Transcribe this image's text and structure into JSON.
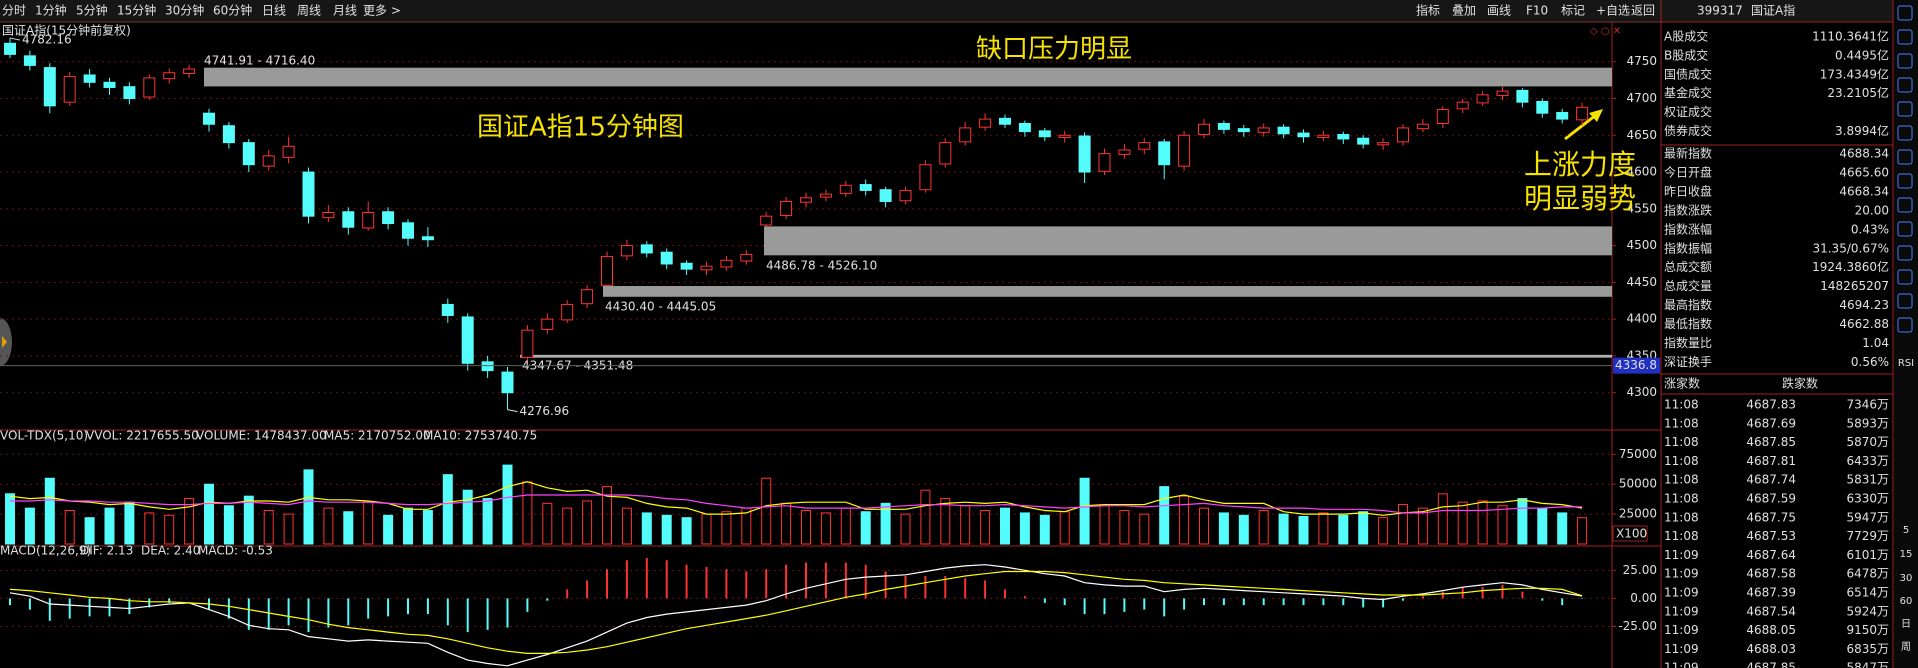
{
  "toolbar": {
    "tabs": [
      "分时",
      "1分钟",
      "5分钟",
      "15分钟",
      "30分钟",
      "60分钟",
      "日线",
      "周线",
      "月线",
      "更多 >"
    ],
    "tools": [
      "指标",
      "叠加",
      "画线",
      "F10",
      "标记",
      "+自选",
      "返回"
    ]
  },
  "chart_data": [
    {
      "type": "candlestick",
      "title": "国证A指(15分钟前复权)",
      "open": [
        4775,
        4758,
        4742,
        4695,
        4732,
        4722,
        4716,
        4702,
        4727,
        4734,
        4680,
        4663,
        4640,
        4608,
        4620,
        4600,
        4538,
        4546,
        4524,
        4546,
        4531,
        4512,
        4420,
        4403,
        4342,
        4328,
        4348,
        4386,
        4399,
        4421,
        4446,
        4486,
        4501,
        4491,
        4476,
        4467,
        4471,
        4479,
        4528,
        4541,
        4559,
        4566,
        4571,
        4583,
        4576,
        4561,
        4576,
        4611,
        4641,
        4661,
        4673,
        4666,
        4656,
        4647,
        4649,
        4601,
        4624,
        4631,
        4641,
        4608,
        4651,
        4666,
        4659,
        4654,
        4661,
        4653,
        4647,
        4651,
        4646,
        4637,
        4641,
        4659,
        4666,
        4686,
        4694,
        4704,
        4711,
        4696,
        4681,
        4671
      ],
      "high": [
        4782.16,
        4765,
        4748,
        4736,
        4740,
        4728,
        4722,
        4733,
        4741,
        4746,
        4686,
        4668,
        4645,
        4630,
        4648,
        4606,
        4555,
        4552,
        4560,
        4552,
        4536,
        4525,
        4428,
        4408,
        4350,
        4335,
        4392,
        4408,
        4426,
        4446,
        4492,
        4508,
        4506,
        4496,
        4480,
        4478,
        4486,
        4494,
        4546,
        4566,
        4572,
        4576,
        4588,
        4590,
        4580,
        4580,
        4616,
        4646,
        4668,
        4680,
        4678,
        4670,
        4660,
        4656,
        4654,
        4632,
        4638,
        4646,
        4645,
        4656,
        4672,
        4670,
        4664,
        4666,
        4665,
        4658,
        4656,
        4655,
        4650,
        4646,
        4665,
        4672,
        4690,
        4700,
        4710,
        4716,
        4714,
        4700,
        4686,
        4694.23
      ],
      "low": [
        4755,
        4738,
        4680,
        4690,
        4715,
        4705,
        4692,
        4698,
        4720,
        4728,
        4655,
        4632,
        4600,
        4602,
        4612,
        4530,
        4532,
        4515,
        4520,
        4522,
        4500,
        4498,
        4395,
        4330,
        4320,
        4276.96,
        4340,
        4380,
        4395,
        4415,
        4445,
        4480,
        4484,
        4468,
        4460,
        4460,
        4466,
        4474,
        4526,
        4536,
        4552,
        4560,
        4566,
        4568,
        4552,
        4556,
        4572,
        4606,
        4636,
        4656,
        4660,
        4648,
        4642,
        4640,
        4585,
        4596,
        4618,
        4624,
        4590,
        4602,
        4646,
        4652,
        4648,
        4648,
        4646,
        4640,
        4642,
        4638,
        4632,
        4630,
        4636,
        4654,
        4660,
        4680,
        4690,
        4698,
        4688,
        4674,
        4666,
        4662.88
      ],
      "close": [
        4760,
        4745,
        4690,
        4730,
        4722,
        4715,
        4700,
        4728,
        4735,
        4740,
        4665,
        4640,
        4610,
        4622,
        4635,
        4540,
        4545,
        4525,
        4545,
        4530,
        4510,
        4508,
        4405,
        4340,
        4330,
        4300,
        4385,
        4400,
        4420,
        4440,
        4485,
        4500,
        4490,
        4475,
        4468,
        4472,
        4480,
        4488,
        4540,
        4560,
        4565,
        4570,
        4582,
        4575,
        4560,
        4575,
        4610,
        4640,
        4660,
        4672,
        4665,
        4655,
        4648,
        4650,
        4600,
        4625,
        4630,
        4640,
        4610,
        4650,
        4665,
        4658,
        4655,
        4660,
        4652,
        4648,
        4650,
        4645,
        4638,
        4640,
        4660,
        4665,
        4685,
        4695,
        4705,
        4710,
        4695,
        4680,
        4672,
        4688
      ],
      "up_color": "#ff3232",
      "down_color": "#54fcfc",
      "ylim": [
        4252,
        4804
      ],
      "yticks": [
        4300,
        4350,
        4400,
        4450,
        4500,
        4550,
        4600,
        4650,
        4700,
        4750
      ],
      "grid": true,
      "gaps": [
        {
          "label": "4741.91 - 4716.40",
          "low": 4716.4,
          "high": 4741.91,
          "color": "#9a9a9a"
        },
        {
          "label": "4486.78 - 4526.10",
          "low": 4486.78,
          "high": 4526.1,
          "color": "#9a9a9a"
        },
        {
          "label": "4430.40 - 4445.05",
          "low": 4430.4,
          "high": 4445.05,
          "color": "#9a9a9a"
        },
        {
          "label": "4347.67 - 4351.48",
          "low": 4347.67,
          "high": 4351.48,
          "color": "#b0b0b0"
        }
      ],
      "cursor_price": {
        "value": 4336.8,
        "label": "4336.8"
      },
      "annotations": [
        "缺口压力明显",
        "国证A指15分钟图",
        "上涨力度",
        "明显弱势"
      ]
    },
    {
      "type": "bar",
      "header": [
        "VOL-TDX(5,10)",
        "VVOL: 2217655.50",
        "VOLUME: 1478437.00",
        "MA5: 2170752.00",
        "MA10: 2753740.75"
      ],
      "values": [
        42000,
        30000,
        55000,
        28000,
        22000,
        30000,
        35000,
        26000,
        24000,
        38000,
        50000,
        32000,
        40000,
        28000,
        25000,
        62000,
        30000,
        27000,
        35000,
        24000,
        30000,
        28000,
        58000,
        45000,
        38000,
        66000,
        52000,
        34000,
        30000,
        36000,
        48000,
        30000,
        26000,
        24000,
        22000,
        25000,
        27000,
        30000,
        55000,
        34000,
        28000,
        26000,
        30000,
        27000,
        34000,
        25000,
        45000,
        38000,
        32000,
        28000,
        30000,
        26000,
        24000,
        27000,
        55000,
        32000,
        28000,
        25000,
        48000,
        40000,
        30000,
        26000,
        24000,
        28000,
        25000,
        23000,
        26000,
        24000,
        27000,
        22000,
        33000,
        30000,
        42000,
        35000,
        36000,
        32000,
        38000,
        30000,
        26000,
        22000
      ],
      "series": [
        {
          "name": "MA5",
          "color": "#ffff00",
          "values": [
            40000,
            38000,
            39000,
            36000,
            35000,
            33000,
            34000,
            31000,
            29000,
            31000,
            35000,
            34000,
            36000,
            36000,
            35000,
            39000,
            37000,
            37000,
            36000,
            34000,
            29000,
            29000,
            35000,
            37000,
            41000,
            48000,
            52000,
            47000,
            44000,
            45000,
            40000,
            39000,
            34000,
            31000,
            30000,
            25000,
            25000,
            26000,
            32000,
            34000,
            35000,
            35000,
            35000,
            29000,
            29000,
            29000,
            32000,
            34000,
            35000,
            34000,
            35000,
            31000,
            28000,
            27000,
            32000,
            33000,
            33000,
            33000,
            38000,
            41000,
            37000,
            34000,
            34000,
            34000,
            27000,
            25000,
            25000,
            25000,
            26000,
            24000,
            26000,
            27000,
            31000,
            32000,
            35000,
            35000,
            37000,
            34000,
            33000,
            30000
          ]
        },
        {
          "name": "MA10",
          "color": "#ff40ff",
          "values": [
            36000,
            36000,
            37000,
            36000,
            36000,
            35000,
            35000,
            34000,
            33000,
            33000,
            34000,
            34000,
            35000,
            34000,
            33000,
            36000,
            35000,
            35000,
            35000,
            34000,
            33000,
            33000,
            34000,
            35000,
            36000,
            39000,
            41000,
            41000,
            41000,
            41000,
            41000,
            41000,
            40000,
            38000,
            37000,
            34000,
            32000,
            30000,
            31000,
            32000,
            30000,
            30000,
            30000,
            30000,
            31000,
            32000,
            33000,
            33000,
            32000,
            32000,
            33000,
            32000,
            31000,
            30000,
            31000,
            32000,
            32000,
            31000,
            32000,
            33000,
            34000,
            32000,
            31000,
            30000,
            30000,
            30000,
            29000,
            29000,
            29000,
            28000,
            26000,
            26000,
            28000,
            28000,
            28000,
            29000,
            30000,
            30000,
            31000,
            31000
          ]
        }
      ],
      "unit": "X100",
      "ylim": [
        0,
        87000
      ],
      "yticks": [
        25000,
        50000,
        75000
      ]
    },
    {
      "type": "macd",
      "header": [
        "MACD(12,26,9)",
        "DIF: 2.13",
        "DEA: 2.40",
        "MACD: -0.53"
      ],
      "values": [
        -6,
        -10,
        -20,
        -18,
        -16,
        -16,
        -14,
        -8,
        -4,
        0,
        -10,
        -18,
        -28,
        -28,
        -24,
        -30,
        -26,
        -24,
        -18,
        -16,
        -14,
        -14,
        -24,
        -30,
        -28,
        -26,
        -12,
        -2,
        8,
        16,
        26,
        34,
        36,
        34,
        30,
        28,
        26,
        24,
        26,
        30,
        32,
        32,
        32,
        30,
        24,
        20,
        20,
        20,
        18,
        16,
        8,
        2,
        -4,
        -6,
        -14,
        -14,
        -12,
        -10,
        -16,
        -10,
        -6,
        -6,
        -6,
        -6,
        -6,
        -6,
        -6,
        -6,
        -8,
        -8,
        -2,
        2,
        6,
        10,
        10,
        12,
        6,
        -2,
        -6,
        -0.53
      ],
      "series": [
        {
          "name": "DIF",
          "color": "#ffffff",
          "values": [
            5,
            2,
            -5,
            -6,
            -7,
            -8,
            -9,
            -7,
            -5,
            -4,
            -10,
            -16,
            -24,
            -27,
            -28,
            -34,
            -36,
            -38,
            -37,
            -38,
            -39,
            -40,
            -48,
            -55,
            -58,
            -60,
            -55,
            -50,
            -44,
            -38,
            -30,
            -22,
            -17,
            -14,
            -12,
            -10,
            -8,
            -6,
            -2,
            4,
            9,
            13,
            17,
            19,
            20,
            21,
            24,
            27,
            29,
            30,
            28,
            25,
            22,
            20,
            14,
            12,
            11,
            11,
            6,
            8,
            9,
            8,
            7,
            6,
            5,
            4,
            3,
            2,
            0,
            -1,
            2,
            4,
            7,
            10,
            12,
            14,
            12,
            8,
            5,
            2.13
          ]
        },
        {
          "name": "DEA",
          "color": "#ffff00",
          "values": [
            8,
            7,
            5,
            3,
            1,
            0,
            -2,
            -3,
            -3,
            -4,
            -5,
            -7,
            -10,
            -13,
            -16,
            -19,
            -23,
            -26,
            -28,
            -30,
            -32,
            -33,
            -36,
            -40,
            -44,
            -47,
            -49,
            -49,
            -48,
            -46,
            -43,
            -39,
            -35,
            -31,
            -27,
            -24,
            -21,
            -18,
            -15,
            -11,
            -7,
            -3,
            1,
            4,
            8,
            11,
            14,
            17,
            20,
            22,
            24,
            24,
            24,
            23,
            21,
            19,
            17,
            16,
            14,
            13,
            12,
            11,
            10,
            9,
            8,
            7,
            6,
            5,
            4,
            3,
            3,
            3,
            4,
            5,
            7,
            8,
            9,
            9,
            8,
            2.4
          ]
        }
      ],
      "up_color": "#ff3232",
      "down_color": "#54fcfc",
      "ylim": [
        -62,
        36
      ],
      "yticks": [
        {
          "value": 25,
          "label": "25.00"
        },
        {
          "value": 0,
          "label": "0.00"
        },
        {
          "value": -25,
          "label": "-25.00"
        }
      ]
    }
  ],
  "quote_panel": {
    "code": "399317",
    "name": "国证A指",
    "turnover_rows": [
      [
        "A股成交",
        "1110.3641亿"
      ],
      [
        "B股成交",
        "0.4495亿"
      ],
      [
        "国债成交",
        "173.4349亿"
      ],
      [
        "基金成交",
        "23.2105亿"
      ],
      [
        "权证成交"
      ],
      [
        "债券成交",
        "3.8994亿"
      ]
    ],
    "index_rows": [
      [
        "最新指数",
        "4688.34"
      ],
      [
        "今日开盘",
        "4665.60"
      ],
      [
        "昨日收盘",
        "4668.34"
      ],
      [
        "指数涨跌",
        "20.00"
      ],
      [
        "指数涨幅",
        "0.43%"
      ],
      [
        "指数振幅",
        "31.35/0.67%"
      ],
      [
        "总成交额",
        "1924.3860亿"
      ],
      [
        "总成交量",
        "148265207"
      ],
      [
        "最高指数",
        "4694.23"
      ],
      [
        "最低指数",
        "4662.88"
      ],
      [
        "指数量比",
        "1.04"
      ],
      [
        "深证换手",
        "0.56%"
      ]
    ],
    "trade_headers": [
      "涨家数",
      "跌家数"
    ],
    "trades": [
      [
        "11:08",
        "4687.83",
        "7346万"
      ],
      [
        "11:08",
        "4687.69",
        "5893万"
      ],
      [
        "11:08",
        "4687.85",
        "5870万"
      ],
      [
        "11:08",
        "4687.81",
        "6433万"
      ],
      [
        "11:08",
        "4687.74",
        "5831万"
      ],
      [
        "11:08",
        "4687.59",
        "6330万"
      ],
      [
        "11:08",
        "4687.75",
        "5947万"
      ],
      [
        "11:08",
        "4687.53",
        "7729万"
      ],
      [
        "11:09",
        "4687.64",
        "6101万"
      ],
      [
        "11:09",
        "4687.58",
        "6478万"
      ],
      [
        "11:09",
        "4687.39",
        "6514万"
      ],
      [
        "11:09",
        "4687.54",
        "5924万"
      ],
      [
        "11:09",
        "4688.05",
        "9150万"
      ],
      [
        "11:09",
        "4688.03",
        "6835万"
      ],
      [
        "11:09",
        "4687.85",
        "5847万"
      ]
    ]
  },
  "side_labels": [
    "RSI",
    "5",
    "15",
    "30",
    "60",
    "日",
    "周"
  ]
}
